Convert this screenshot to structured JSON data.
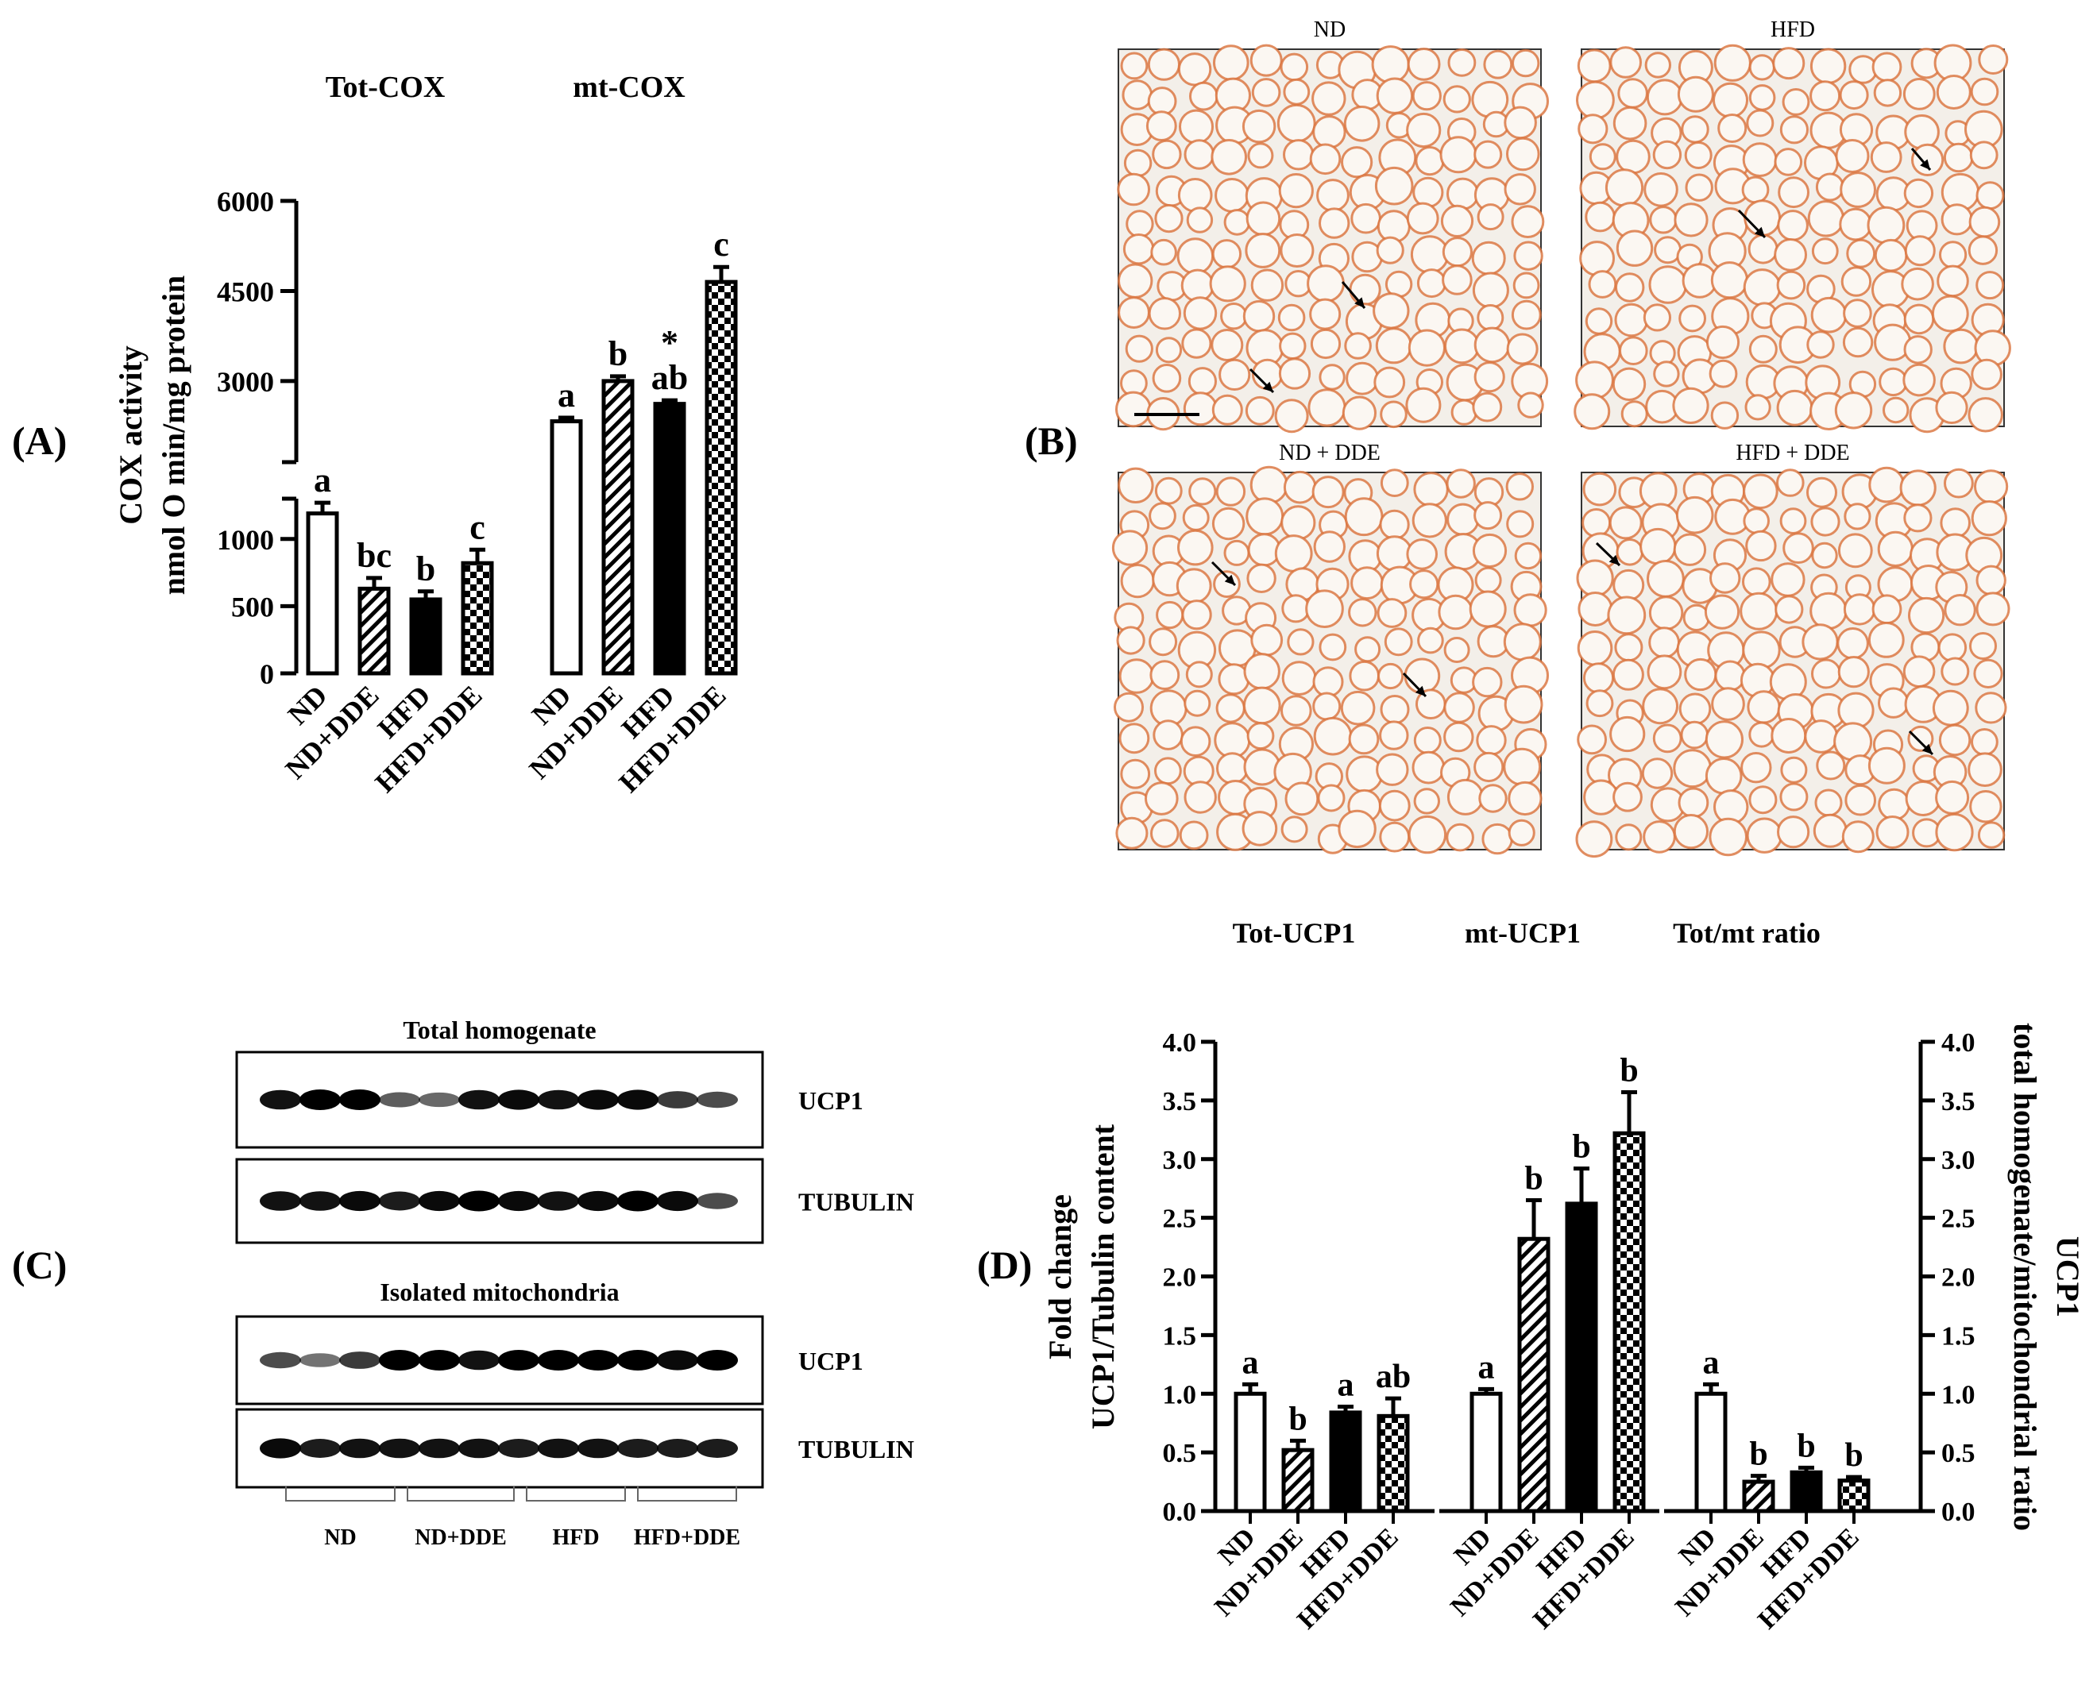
{
  "panels": {
    "A": {
      "letter": "(A)"
    },
    "B": {
      "letter": "(B)"
    },
    "C": {
      "letter": "(C)"
    },
    "D": {
      "letter": "(D)"
    }
  },
  "colors": {
    "bar_outline": "#000000",
    "tissue_background": "#f3efe9",
    "cell_stain": "#d9713a",
    "cell_interior": "#fbf7f2"
  },
  "chart_data": [
    {
      "panel": "A",
      "type": "bar",
      "ylabel_lines": [
        "COX activity",
        "nmol O min/mg protein"
      ],
      "axis_break": true,
      "ylim": [
        0,
        6000
      ],
      "yticks": [
        "0",
        "500",
        "1000",
        "3000",
        "4500",
        "6000"
      ],
      "categories": [
        "ND",
        "ND+DDE",
        "HFD",
        "HFD+DDE"
      ],
      "bar_patterns": [
        "open",
        "hatched",
        "solid",
        "checkered"
      ],
      "groups": [
        {
          "name": "Tot-COX",
          "values": [
            1190,
            630,
            550,
            820
          ],
          "errors": [
            80,
            80,
            60,
            100
          ],
          "letters": [
            "a",
            "bc",
            "b",
            "c"
          ],
          "marks": [
            "",
            "",
            "",
            ""
          ]
        },
        {
          "name": "mt-COX",
          "values": [
            2330,
            3000,
            2620,
            4650
          ],
          "errors": [
            60,
            80,
            60,
            250
          ],
          "letters": [
            "a",
            "b",
            "ab",
            "c"
          ],
          "marks": [
            "",
            "",
            "*",
            ""
          ]
        }
      ]
    },
    {
      "panel": "D",
      "type": "bar",
      "ylabel_lines": [
        "Fold change",
        "UCP1/Tubulin content"
      ],
      "ylabel_right_lines": [
        "UCP1",
        "total homogenate/mitochondrial ratio"
      ],
      "ylim": [
        0,
        4.0
      ],
      "yticks": [
        "0.0",
        "0.5",
        "1.0",
        "1.5",
        "2.0",
        "2.5",
        "3.0",
        "3.5",
        "4.0"
      ],
      "categories": [
        "ND",
        "ND+DDE",
        "HFD",
        "HFD+DDE"
      ],
      "bar_patterns": [
        "open",
        "hatched",
        "solid",
        "checkered"
      ],
      "groups": [
        {
          "name": "Tot-UCP1",
          "values": [
            1.0,
            0.52,
            0.84,
            0.81
          ],
          "errors": [
            0.08,
            0.08,
            0.05,
            0.15
          ],
          "letters": [
            "a",
            "b",
            "a",
            "ab"
          ]
        },
        {
          "name": "mt-UCP1",
          "values": [
            1.0,
            2.32,
            2.62,
            3.22
          ],
          "errors": [
            0.04,
            0.33,
            0.3,
            0.35
          ],
          "letters": [
            "a",
            "b",
            "b",
            "b"
          ]
        },
        {
          "name": "Tot/mt ratio",
          "values": [
            1.0,
            0.25,
            0.33,
            0.26
          ],
          "errors": [
            0.08,
            0.05,
            0.04,
            0.03
          ],
          "letters": [
            "a",
            "b",
            "b",
            "b"
          ]
        }
      ]
    }
  ],
  "micrographs": [
    {
      "label": "ND"
    },
    {
      "label": "HFD"
    },
    {
      "label": "ND + DDE"
    },
    {
      "label": "HFD + DDE"
    }
  ],
  "western_blot": {
    "sections": [
      {
        "title": "Total homogenate",
        "bands": [
          "UCP1",
          "TUBULIN"
        ]
      },
      {
        "title": "Isolated mitochondria",
        "bands": [
          "UCP1",
          "TUBULIN"
        ]
      }
    ],
    "lane_groups": [
      "ND",
      "ND+DDE",
      "HFD",
      "HFD+DDE"
    ]
  }
}
